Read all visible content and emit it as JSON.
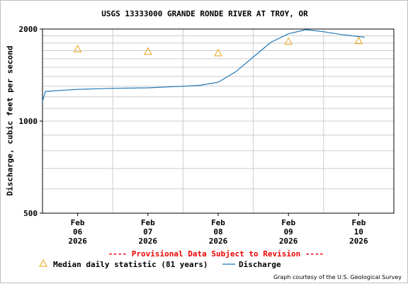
{
  "chart_data": {
    "type": "line",
    "title": "USGS 13333000 GRANDE RONDE RIVER AT TROY, OR",
    "ylabel": "Discharge, cubic feet per second",
    "xlabel": "",
    "y_scale": "log",
    "ylim": [
      500,
      2000
    ],
    "y_ticks": [
      500,
      1000,
      2000
    ],
    "xlim": [
      "2026-02-05 12:00",
      "2026-02-10 12:00"
    ],
    "x_ticks": [
      {
        "value": "2026-02-06 00:00",
        "lines": [
          "Feb",
          "06",
          "2026"
        ]
      },
      {
        "value": "2026-02-07 00:00",
        "lines": [
          "Feb",
          "07",
          "2026"
        ]
      },
      {
        "value": "2026-02-08 00:00",
        "lines": [
          "Feb",
          "08",
          "2026"
        ]
      },
      {
        "value": "2026-02-09 00:00",
        "lines": [
          "Feb",
          "09",
          "2026"
        ]
      },
      {
        "value": "2026-02-10 00:00",
        "lines": [
          "Feb",
          "10",
          "2026"
        ]
      }
    ],
    "grid": true,
    "legend_position": "bottom",
    "notice": "---- Provisional Data Subject to Revision ----",
    "credit": "Graph courtesy of the U.S. Geological Survey",
    "series": [
      {
        "name": "Discharge",
        "style": "line",
        "color": "#1f77b4",
        "x": [
          "2026-02-05 12:00",
          "2026-02-05 13:00",
          "2026-02-05 18:00",
          "2026-02-06 00:00",
          "2026-02-06 12:00",
          "2026-02-07 00:00",
          "2026-02-07 12:00",
          "2026-02-07 18:00",
          "2026-02-08 00:00",
          "2026-02-08 06:00",
          "2026-02-08 12:00",
          "2026-02-08 18:00",
          "2026-02-09 00:00",
          "2026-02-09 06:00",
          "2026-02-09 12:00",
          "2026-02-09 18:00",
          "2026-02-10 00:00",
          "2026-02-10 02:00"
        ],
        "values": [
          1160,
          1250,
          1260,
          1270,
          1280,
          1285,
          1300,
          1310,
          1340,
          1450,
          1620,
          1810,
          1930,
          1990,
          1960,
          1920,
          1890,
          1880
        ]
      },
      {
        "name": "Median daily statistic (81 years)",
        "style": "marker",
        "color": "#e8a317",
        "x": [
          "2026-02-06 00:00",
          "2026-02-07 00:00",
          "2026-02-08 00:00",
          "2026-02-09 00:00",
          "2026-02-10 00:00"
        ],
        "values": [
          1720,
          1690,
          1670,
          1820,
          1830
        ]
      }
    ]
  }
}
